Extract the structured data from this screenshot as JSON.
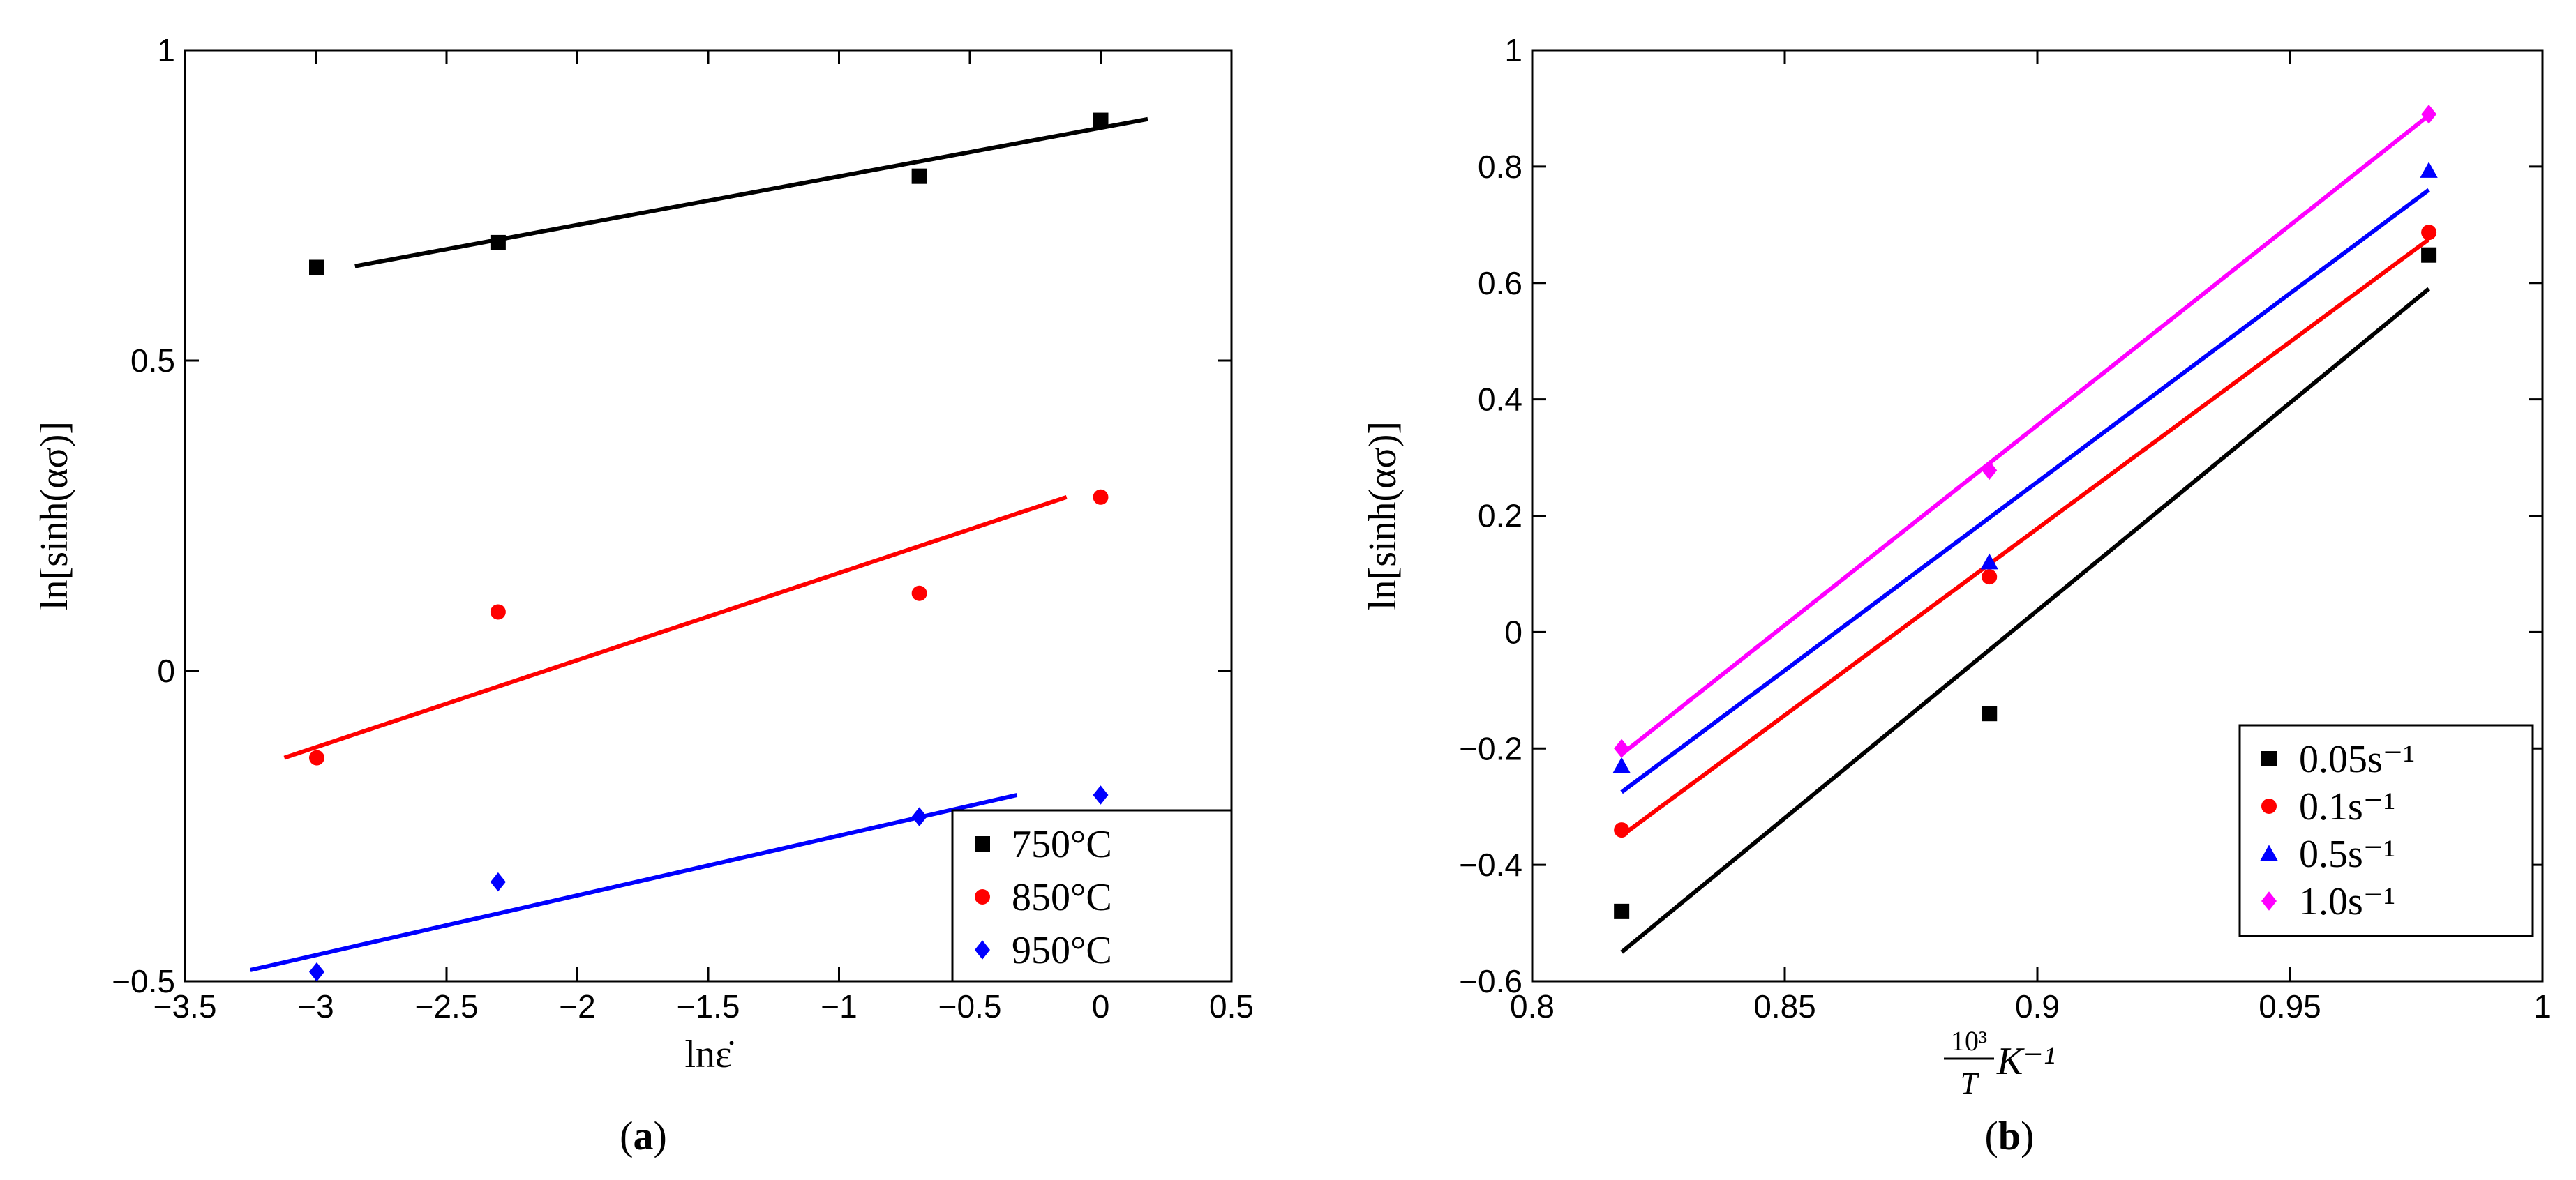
{
  "chart_data": [
    {
      "type": "scatter",
      "caption_open": "(",
      "caption_letter": "a",
      "caption_close": ")",
      "xlabel": "lnε̇",
      "ylabel": "ln[sinh(ασ)]",
      "xlim": [
        -3.5,
        0.5
      ],
      "ylim": [
        -0.5,
        1
      ],
      "xticks": [
        -3.5,
        -3,
        -2.5,
        -2,
        -1.5,
        -1,
        -0.5,
        0,
        0.5
      ],
      "xtick_labels": [
        "−3.5",
        "−3",
        "−2.5",
        "−2",
        "−1.5",
        "−1",
        "−0.5",
        "0",
        "0.5"
      ],
      "yticks": [
        -0.5,
        0,
        0.5,
        1
      ],
      "ytick_labels": [
        "−0.5",
        "0",
        "0.5",
        "1"
      ],
      "grid": false,
      "legend_position": "bottom-right",
      "series": [
        {
          "name": "750°C",
          "color": "#000000",
          "marker": "square",
          "points": [
            [
              -2.996,
              0.65
            ],
            [
              -2.303,
              0.69
            ],
            [
              -0.693,
              0.797
            ],
            [
              0.0,
              0.887
            ]
          ],
          "fit": [
            [
              -2.85,
              0.652
            ],
            [
              0.18,
              0.889
            ]
          ]
        },
        {
          "name": "850°C",
          "color": "#ff0000",
          "marker": "circle",
          "points": [
            [
              -2.996,
              -0.14
            ],
            [
              -2.303,
              0.095
            ],
            [
              -0.693,
              0.125
            ],
            [
              0.0,
              0.28
            ]
          ],
          "fit": [
            [
              -3.12,
              -0.14
            ],
            [
              -0.13,
              0.28
            ]
          ]
        },
        {
          "name": "950°C",
          "color": "#0000ff",
          "marker": "diamond",
          "points": [
            [
              -2.996,
              -0.485
            ],
            [
              -2.303,
              -0.34
            ],
            [
              -0.693,
              -0.235
            ],
            [
              0.0,
              -0.2
            ]
          ],
          "fit": [
            [
              -3.25,
              -0.482
            ],
            [
              -0.32,
              -0.2
            ]
          ]
        }
      ]
    },
    {
      "type": "scatter",
      "caption_open": "(",
      "caption_letter": "b",
      "caption_close": ")",
      "xlabel_frac_num": "10³",
      "xlabel_frac_den": "T",
      "xlabel_rest": "K⁻¹",
      "ylabel": "ln[sinh(ασ)]",
      "xlim": [
        0.8,
        1.0
      ],
      "ylim": [
        -0.6,
        1.0
      ],
      "xticks": [
        0.8,
        0.85,
        0.9,
        0.95,
        1.0
      ],
      "xtick_labels": [
        "0.8",
        "0.85",
        "0.9",
        "0.95",
        "1"
      ],
      "yticks": [
        -0.6,
        -0.4,
        -0.2,
        0,
        0.2,
        0.4,
        0.6,
        0.8,
        1.0
      ],
      "ytick_labels": [
        "−0.6",
        "−0.4",
        "−0.2",
        "0",
        "0.2",
        "0.4",
        "0.6",
        "0.8",
        "1"
      ],
      "grid": false,
      "legend_position": "bottom-right",
      "series": [
        {
          "name": "0.05s⁻¹",
          "color": "#000000",
          "marker": "square",
          "points": [
            [
              0.8177,
              -0.48
            ],
            [
              0.8905,
              -0.14
            ],
            [
              0.9775,
              0.648
            ]
          ],
          "fit": [
            [
              0.8177,
              -0.55
            ],
            [
              0.9775,
              0.59
            ]
          ]
        },
        {
          "name": "0.1s⁻¹",
          "color": "#ff0000",
          "marker": "circle",
          "points": [
            [
              0.8177,
              -0.34
            ],
            [
              0.8905,
              0.095
            ],
            [
              0.9775,
              0.687
            ]
          ],
          "fit": [
            [
              0.8177,
              -0.35
            ],
            [
              0.9775,
              0.675
            ]
          ]
        },
        {
          "name": "0.5s⁻¹",
          "color": "#0000ff",
          "marker": "triangle",
          "points": [
            [
              0.8177,
              -0.23
            ],
            [
              0.8905,
              0.12
            ],
            [
              0.9775,
              0.793
            ]
          ],
          "fit": [
            [
              0.8177,
              -0.275
            ],
            [
              0.9775,
              0.76
            ]
          ]
        },
        {
          "name": "1.0s⁻¹",
          "color": "#ff00ff",
          "marker": "diamond",
          "points": [
            [
              0.8177,
              -0.2
            ],
            [
              0.8905,
              0.278
            ],
            [
              0.9775,
              0.89
            ]
          ],
          "fit": [
            [
              0.8177,
              -0.21
            ],
            [
              0.9775,
              0.888
            ]
          ]
        }
      ]
    }
  ]
}
